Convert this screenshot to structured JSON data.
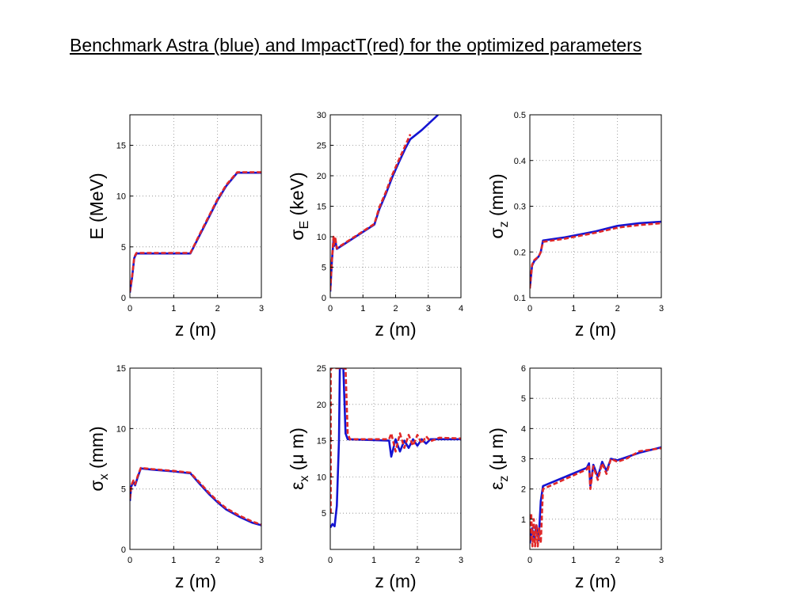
{
  "title": "Benchmark Astra (blue) and ImpactT(red) for the optimized parameters",
  "colors": {
    "astra": "#1414d2",
    "impactt": "#e02828",
    "grid": "#888888",
    "axis": "#000000"
  },
  "chart_data": [
    {
      "type": "line",
      "xlabel": "z (m)",
      "ylabel": "E (MeV)",
      "ylabel_parts": [
        {
          "t": "E (MeV)",
          "s": "n"
        }
      ],
      "xlim": [
        0,
        3
      ],
      "ylim": [
        0,
        18
      ],
      "xticks": [
        0,
        1,
        2,
        3
      ],
      "yticks": [
        0,
        5,
        10,
        15
      ],
      "grid": true,
      "series": [
        {
          "name": "Astra",
          "color": "blue",
          "style": "solid",
          "x": [
            0,
            0.05,
            0.1,
            0.15,
            0.5,
            1.0,
            1.38,
            1.6,
            1.8,
            2.0,
            2.2,
            2.45,
            3.0
          ],
          "y": [
            0.5,
            2.0,
            3.9,
            4.35,
            4.35,
            4.35,
            4.35,
            6.2,
            7.9,
            9.6,
            11.0,
            12.3,
            12.3
          ]
        },
        {
          "name": "ImpactT",
          "color": "red",
          "style": "dashed",
          "x": [
            0,
            0.05,
            0.1,
            0.15,
            0.5,
            1.0,
            1.38,
            1.6,
            1.8,
            2.0,
            2.2,
            2.45,
            3.0
          ],
          "y": [
            0.6,
            2.1,
            4.0,
            4.4,
            4.4,
            4.4,
            4.4,
            6.3,
            8.0,
            9.7,
            11.1,
            12.35,
            12.35
          ]
        }
      ]
    },
    {
      "type": "line",
      "xlabel": "z (m)",
      "ylabel": "σE (keV)",
      "ylabel_parts": [
        {
          "t": "σ",
          "s": "n"
        },
        {
          "t": "E",
          "s": "sub"
        },
        {
          "t": " (keV)",
          "s": "n"
        }
      ],
      "xlim": [
        0,
        4
      ],
      "ylim": [
        0,
        30
      ],
      "xticks": [
        0,
        1,
        2,
        3,
        4
      ],
      "yticks": [
        0,
        5,
        10,
        15,
        20,
        25,
        30
      ],
      "grid": true,
      "series": [
        {
          "name": "Astra",
          "color": "blue",
          "style": "solid",
          "x": [
            0,
            0.05,
            0.1,
            0.12,
            0.15,
            0.2,
            1.35,
            1.5,
            1.7,
            1.9,
            2.1,
            2.3,
            2.45,
            2.8,
            3.2,
            3.3
          ],
          "y": [
            1,
            6,
            9.5,
            8.5,
            9.5,
            8.0,
            12.0,
            14.5,
            17.0,
            19.8,
            22.2,
            24.5,
            26.0,
            27.5,
            29.5,
            30
          ]
        },
        {
          "name": "ImpactT",
          "color": "red",
          "style": "dashed",
          "x": [
            0,
            0.05,
            0.1,
            0.12,
            0.15,
            0.2,
            1.35,
            1.5,
            1.7,
            1.9,
            2.1,
            2.3,
            2.45
          ],
          "y": [
            1.2,
            6.2,
            10,
            8.7,
            10,
            8.1,
            12.1,
            14.8,
            17.3,
            20.2,
            22.6,
            25.0,
            26.8
          ]
        }
      ]
    },
    {
      "type": "line",
      "xlabel": "z (m)",
      "ylabel": "σz (mm)",
      "ylabel_parts": [
        {
          "t": "σ",
          "s": "n"
        },
        {
          "t": "z",
          "s": "sub"
        },
        {
          "t": " (mm)",
          "s": "n"
        }
      ],
      "xlim": [
        0,
        3
      ],
      "ylim": [
        0.1,
        0.5
      ],
      "xticks": [
        0,
        1,
        2,
        3
      ],
      "yticks": [
        0.1,
        0.2,
        0.3,
        0.4,
        0.5
      ],
      "grid": true,
      "series": [
        {
          "name": "Astra",
          "color": "blue",
          "style": "solid",
          "x": [
            0,
            0.05,
            0.1,
            0.2,
            0.25,
            0.3,
            0.8,
            1.5,
            2.0,
            2.5,
            3.0
          ],
          "y": [
            0.12,
            0.17,
            0.18,
            0.19,
            0.2,
            0.225,
            0.232,
            0.245,
            0.257,
            0.263,
            0.266
          ]
        },
        {
          "name": "ImpactT",
          "color": "red",
          "style": "dashed",
          "x": [
            0,
            0.05,
            0.1,
            0.2,
            0.25,
            0.3,
            0.8,
            1.5,
            2.0,
            2.5,
            3.0
          ],
          "y": [
            0.12,
            0.172,
            0.182,
            0.19,
            0.2,
            0.222,
            0.229,
            0.242,
            0.253,
            0.259,
            0.263
          ]
        }
      ]
    },
    {
      "type": "line",
      "xlabel": "z (m)",
      "ylabel": "σx (mm)",
      "ylabel_parts": [
        {
          "t": "σ",
          "s": "n"
        },
        {
          "t": "x",
          "s": "sub"
        },
        {
          "t": " (mm)",
          "s": "n"
        }
      ],
      "xlim": [
        0,
        3
      ],
      "ylim": [
        0,
        15
      ],
      "xticks": [
        0,
        1,
        2,
        3
      ],
      "yticks": [
        0,
        5,
        10,
        15
      ],
      "grid": true,
      "series": [
        {
          "name": "Astra",
          "color": "blue",
          "style": "solid",
          "x": [
            0,
            0.03,
            0.08,
            0.12,
            0.18,
            0.25,
            0.5,
            1.0,
            1.38,
            1.6,
            1.8,
            2.0,
            2.2,
            2.5,
            2.8,
            3.0
          ],
          "y": [
            4.0,
            5.2,
            5.6,
            5.3,
            6.0,
            6.7,
            6.6,
            6.45,
            6.3,
            5.4,
            4.6,
            3.9,
            3.3,
            2.7,
            2.2,
            2.0
          ]
        },
        {
          "name": "ImpactT",
          "color": "red",
          "style": "dashed",
          "x": [
            0,
            0.03,
            0.08,
            0.12,
            0.18,
            0.25,
            0.5,
            1.0,
            1.38,
            1.6,
            1.8,
            2.0,
            2.2,
            2.5,
            2.8,
            3.0
          ],
          "y": [
            4.2,
            5.3,
            5.7,
            5.4,
            6.1,
            6.75,
            6.65,
            6.5,
            6.35,
            5.5,
            4.7,
            4.0,
            3.4,
            2.8,
            2.3,
            2.05
          ]
        }
      ]
    },
    {
      "type": "line",
      "xlabel": "z (m)",
      "ylabel": "εx (μ m)",
      "ylabel_parts": [
        {
          "t": "ε",
          "s": "n"
        },
        {
          "t": "x",
          "s": "sub"
        },
        {
          "t": " (μ m)",
          "s": "n"
        }
      ],
      "xlim": [
        0,
        3
      ],
      "ylim": [
        0,
        25
      ],
      "xticks": [
        0,
        1,
        2,
        3
      ],
      "yticks": [
        5,
        10,
        15,
        20,
        25
      ],
      "grid": true,
      "series": [
        {
          "name": "Astra",
          "color": "blue",
          "style": "solid",
          "x": [
            0,
            0.05,
            0.1,
            0.15,
            0.2,
            0.22,
            0.25,
            0.3,
            0.35,
            0.4,
            1.35,
            1.4,
            1.5,
            1.6,
            1.7,
            1.8,
            1.9,
            2.0,
            2.1,
            2.2,
            2.3,
            2.5,
            3.0
          ],
          "y": [
            3.0,
            3.5,
            3.2,
            6,
            15,
            25,
            25,
            25,
            16,
            15.2,
            15.0,
            12.8,
            15.2,
            13.5,
            15.0,
            14.0,
            15.2,
            14.3,
            15.2,
            14.6,
            15.2,
            15.2,
            15.2
          ]
        },
        {
          "name": "ImpactT",
          "color": "red",
          "style": "dashed",
          "x": [
            0.01,
            0.01,
            0.3,
            0.35,
            0.4,
            0.45,
            1.35,
            1.4,
            1.5,
            1.6,
            1.7,
            1.8,
            1.9,
            2.0,
            2.1,
            2.2,
            2.3,
            2.5,
            3.0
          ],
          "y": [
            5,
            25,
            25,
            25,
            16,
            15.2,
            15.2,
            16.0,
            13.5,
            16.0,
            14.0,
            15.8,
            14.3,
            15.8,
            14.6,
            15.6,
            14.9,
            15.4,
            15.3
          ]
        }
      ]
    },
    {
      "type": "line",
      "xlabel": "z (m)",
      "ylabel": "εz (μ m)",
      "ylabel_parts": [
        {
          "t": "ε",
          "s": "n"
        },
        {
          "t": "z",
          "s": "sub"
        },
        {
          "t": " (μ m)",
          "s": "n"
        }
      ],
      "xlim": [
        0,
        3
      ],
      "ylim": [
        0,
        6
      ],
      "xticks": [
        0,
        1,
        2,
        3
      ],
      "yticks": [
        1,
        2,
        3,
        4,
        5,
        6
      ],
      "grid": true,
      "series": [
        {
          "name": "Astra",
          "color": "blue",
          "style": "solid",
          "x": [
            0,
            0.05,
            0.1,
            0.15,
            0.2,
            0.25,
            0.3,
            1.3,
            1.35,
            1.38,
            1.45,
            1.55,
            1.65,
            1.75,
            1.85,
            2.0,
            2.2,
            2.5,
            3.0
          ],
          "y": [
            0.2,
            0.7,
            0.4,
            0.8,
            0.3,
            1.6,
            2.1,
            2.7,
            2.85,
            2.1,
            2.8,
            2.4,
            2.9,
            2.6,
            3.0,
            2.95,
            3.05,
            3.2,
            3.38
          ]
        },
        {
          "name": "ImpactT",
          "color": "red",
          "style": "dashed",
          "x": [
            0,
            0.03,
            0.06,
            0.09,
            0.12,
            0.15,
            0.18,
            0.21,
            0.25,
            0.3,
            1.3,
            1.35,
            1.38,
            1.45,
            1.55,
            1.65,
            1.75,
            1.85,
            2.0,
            2.2,
            2.5,
            3.0
          ],
          "y": [
            0.3,
            1.2,
            0.1,
            1.0,
            0.1,
            0.8,
            0.1,
            0.7,
            0.2,
            2.0,
            2.65,
            2.8,
            2.0,
            2.75,
            2.3,
            2.85,
            2.5,
            3.0,
            2.9,
            3.0,
            3.25,
            3.35
          ]
        }
      ]
    }
  ]
}
